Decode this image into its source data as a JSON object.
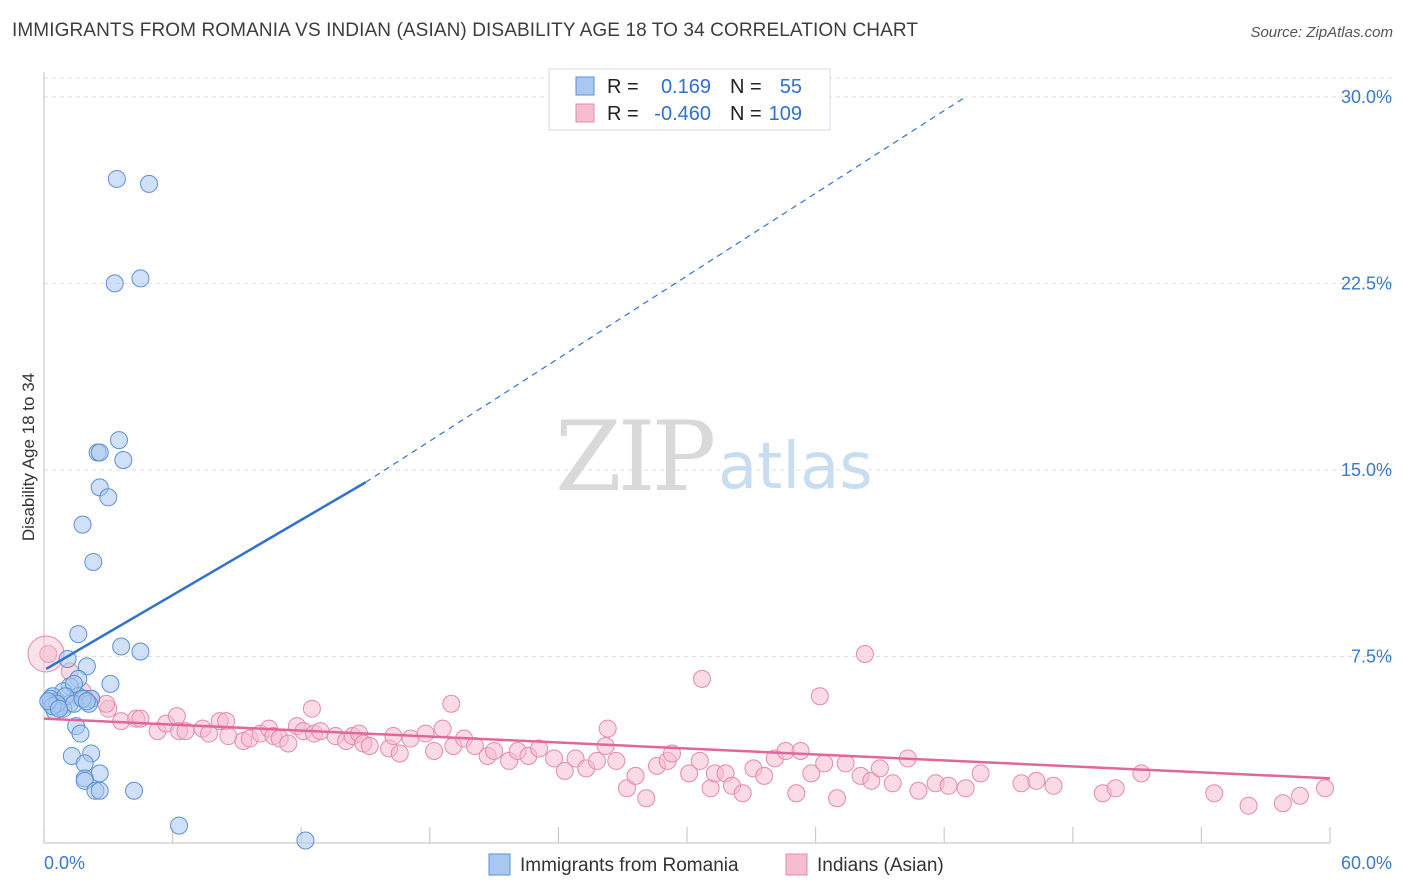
{
  "title": "IMMIGRANTS FROM ROMANIA VS INDIAN (ASIAN) DISABILITY AGE 18 TO 34 CORRELATION CHART",
  "source": "Source: ZipAtlas.com",
  "watermark": {
    "zip": "ZIP",
    "atlas": "atlas"
  },
  "legend": {
    "rows": [
      {
        "r_label": "R =",
        "r_value": "0.169",
        "n_label": "N =",
        "n_value": "55"
      },
      {
        "r_label": "R =",
        "r_value": "-0.460",
        "n_label": "N =",
        "n_value": "109"
      }
    ]
  },
  "bottom_legend": [
    "Immigrants from Romania",
    "Indians (Asian)"
  ],
  "colors": {
    "blue_fill": "#a9c8f0",
    "blue_stroke": "#5b8fd6",
    "blue_line": "#2f72d0",
    "pink_fill": "#f6bccf",
    "pink_stroke": "#e48aa8",
    "pink_line": "#e0679a",
    "grid": "#dddddd",
    "tick_text": "#3b78c9"
  },
  "chart_data": {
    "type": "scatter",
    "title": "IMMIGRANTS FROM ROMANIA VS INDIAN (ASIAN) DISABILITY AGE 18 TO 34 CORRELATION CHART",
    "xlabel": "",
    "ylabel": "Disability Age 18 to 34",
    "xlim": [
      0,
      60
    ],
    "ylim": [
      0,
      31
    ],
    "x_tick_labels": [
      "0.0%",
      "60.0%"
    ],
    "y_ticks": [
      7.5,
      15.0,
      22.5,
      30.0
    ],
    "y_tick_labels": [
      "7.5%",
      "15.0%",
      "22.5%",
      "30.0%"
    ],
    "grid": true,
    "legend_position": "top-center",
    "series": [
      {
        "name": "Immigrants from Romania",
        "color": "#a9c8f0",
        "r": 0.169,
        "n": 55,
        "trend": {
          "x": [
            0.1,
            15.0
          ],
          "y": [
            7.0,
            14.5
          ],
          "dashed_extension_to": [
            43.0,
            30.0
          ]
        },
        "points": [
          [
            3.4,
            26.7
          ],
          [
            4.9,
            26.5
          ],
          [
            3.3,
            22.5
          ],
          [
            4.5,
            22.7
          ],
          [
            3.5,
            16.2
          ],
          [
            2.5,
            15.7
          ],
          [
            2.6,
            15.7
          ],
          [
            3.7,
            15.4
          ],
          [
            2.6,
            14.3
          ],
          [
            3.0,
            13.9
          ],
          [
            1.8,
            12.8
          ],
          [
            2.3,
            11.3
          ],
          [
            1.6,
            8.4
          ],
          [
            3.6,
            7.9
          ],
          [
            4.5,
            7.7
          ],
          [
            1.1,
            7.4
          ],
          [
            2.0,
            7.1
          ],
          [
            1.6,
            6.6
          ],
          [
            3.1,
            6.4
          ],
          [
            1.2,
            6.3
          ],
          [
            0.9,
            6.1
          ],
          [
            1.6,
            5.9
          ],
          [
            1.4,
            6.4
          ],
          [
            0.4,
            5.9
          ],
          [
            0.6,
            5.7
          ],
          [
            0.3,
            5.6
          ],
          [
            0.8,
            5.5
          ],
          [
            1.2,
            5.6
          ],
          [
            0.5,
            5.3
          ],
          [
            0.9,
            5.4
          ],
          [
            1.9,
            5.8
          ],
          [
            2.2,
            5.8
          ],
          [
            2.1,
            5.6
          ],
          [
            0.3,
            5.8
          ],
          [
            1.0,
            5.9
          ],
          [
            0.6,
            5.6
          ],
          [
            0.4,
            5.5
          ],
          [
            1.4,
            5.6
          ],
          [
            1.8,
            5.8
          ],
          [
            2.0,
            5.7
          ],
          [
            1.5,
            4.7
          ],
          [
            1.7,
            4.4
          ],
          [
            1.3,
            3.5
          ],
          [
            2.2,
            3.6
          ],
          [
            1.9,
            3.2
          ],
          [
            2.6,
            2.8
          ],
          [
            1.9,
            2.6
          ],
          [
            1.9,
            2.5
          ],
          [
            2.4,
            2.1
          ],
          [
            2.6,
            2.1
          ],
          [
            4.2,
            2.1
          ],
          [
            6.3,
            0.7
          ],
          [
            12.2,
            0.1
          ],
          [
            0.2,
            5.7
          ],
          [
            0.7,
            5.4
          ]
        ]
      },
      {
        "name": "Indians (Asian)",
        "color": "#f6bccf",
        "r": -0.46,
        "n": 109,
        "trend": {
          "x": [
            0,
            60
          ],
          "y": [
            5.0,
            2.6
          ]
        },
        "points": [
          [
            0.2,
            7.6
          ],
          [
            1.2,
            6.9
          ],
          [
            1.8,
            6.1
          ],
          [
            2.2,
            5.8
          ],
          [
            3.0,
            5.4
          ],
          [
            2.9,
            5.6
          ],
          [
            3.6,
            4.9
          ],
          [
            4.3,
            5.0
          ],
          [
            4.5,
            5.0
          ],
          [
            5.3,
            4.5
          ],
          [
            5.7,
            4.8
          ],
          [
            6.2,
            5.1
          ],
          [
            6.3,
            4.5
          ],
          [
            6.6,
            4.5
          ],
          [
            7.4,
            4.6
          ],
          [
            7.7,
            4.4
          ],
          [
            8.2,
            4.9
          ],
          [
            8.5,
            4.9
          ],
          [
            8.6,
            4.3
          ],
          [
            9.3,
            4.1
          ],
          [
            9.6,
            4.2
          ],
          [
            10.1,
            4.4
          ],
          [
            10.5,
            4.6
          ],
          [
            10.7,
            4.3
          ],
          [
            11.0,
            4.2
          ],
          [
            11.4,
            4.0
          ],
          [
            11.8,
            4.7
          ],
          [
            12.1,
            4.5
          ],
          [
            12.6,
            4.4
          ],
          [
            12.9,
            4.5
          ],
          [
            13.6,
            4.3
          ],
          [
            14.1,
            4.1
          ],
          [
            14.4,
            4.3
          ],
          [
            14.7,
            4.4
          ],
          [
            14.9,
            4.0
          ],
          [
            15.2,
            3.9
          ],
          [
            16.1,
            3.8
          ],
          [
            16.3,
            4.3
          ],
          [
            16.6,
            3.6
          ],
          [
            17.1,
            4.2
          ],
          [
            17.8,
            4.4
          ],
          [
            18.2,
            3.7
          ],
          [
            18.6,
            4.6
          ],
          [
            19.1,
            3.9
          ],
          [
            19.6,
            4.2
          ],
          [
            20.1,
            3.9
          ],
          [
            20.7,
            3.5
          ],
          [
            21.0,
            3.7
          ],
          [
            21.7,
            3.3
          ],
          [
            22.1,
            3.7
          ],
          [
            22.6,
            3.5
          ],
          [
            23.1,
            3.8
          ],
          [
            23.8,
            3.4
          ],
          [
            24.3,
            2.9
          ],
          [
            24.8,
            3.4
          ],
          [
            25.3,
            3.0
          ],
          [
            25.8,
            3.3
          ],
          [
            26.2,
            3.9
          ],
          [
            26.7,
            3.3
          ],
          [
            27.2,
            2.2
          ],
          [
            27.6,
            2.7
          ],
          [
            28.1,
            1.8
          ],
          [
            28.6,
            3.1
          ],
          [
            29.1,
            3.3
          ],
          [
            29.3,
            3.6
          ],
          [
            30.1,
            2.8
          ],
          [
            30.6,
            3.3
          ],
          [
            31.1,
            2.2
          ],
          [
            31.3,
            2.8
          ],
          [
            31.8,
            2.8
          ],
          [
            32.1,
            2.3
          ],
          [
            32.6,
            2.0
          ],
          [
            33.1,
            3.0
          ],
          [
            33.6,
            2.7
          ],
          [
            34.1,
            3.4
          ],
          [
            34.6,
            3.7
          ],
          [
            35.1,
            2.0
          ],
          [
            35.3,
            3.7
          ],
          [
            35.8,
            2.8
          ],
          [
            36.4,
            3.2
          ],
          [
            37.0,
            1.8
          ],
          [
            37.4,
            3.2
          ],
          [
            38.1,
            2.7
          ],
          [
            38.6,
            2.5
          ],
          [
            39.0,
            3.0
          ],
          [
            39.6,
            2.4
          ],
          [
            40.3,
            3.4
          ],
          [
            40.8,
            2.1
          ],
          [
            41.6,
            2.4
          ],
          [
            42.2,
            2.3
          ],
          [
            43.0,
            2.2
          ],
          [
            43.7,
            2.8
          ],
          [
            45.6,
            2.4
          ],
          [
            46.3,
            2.5
          ],
          [
            47.1,
            2.3
          ],
          [
            49.4,
            2.0
          ],
          [
            50.0,
            2.2
          ],
          [
            51.2,
            2.8
          ],
          [
            54.6,
            2.0
          ],
          [
            56.2,
            1.5
          ],
          [
            57.8,
            1.6
          ],
          [
            58.6,
            1.9
          ],
          [
            62.6,
            2.2
          ],
          [
            38.3,
            7.6
          ],
          [
            19.0,
            5.6
          ],
          [
            30.7,
            6.6
          ],
          [
            36.2,
            5.9
          ],
          [
            26.3,
            4.6
          ],
          [
            12.5,
            5.4
          ]
        ]
      }
    ]
  }
}
